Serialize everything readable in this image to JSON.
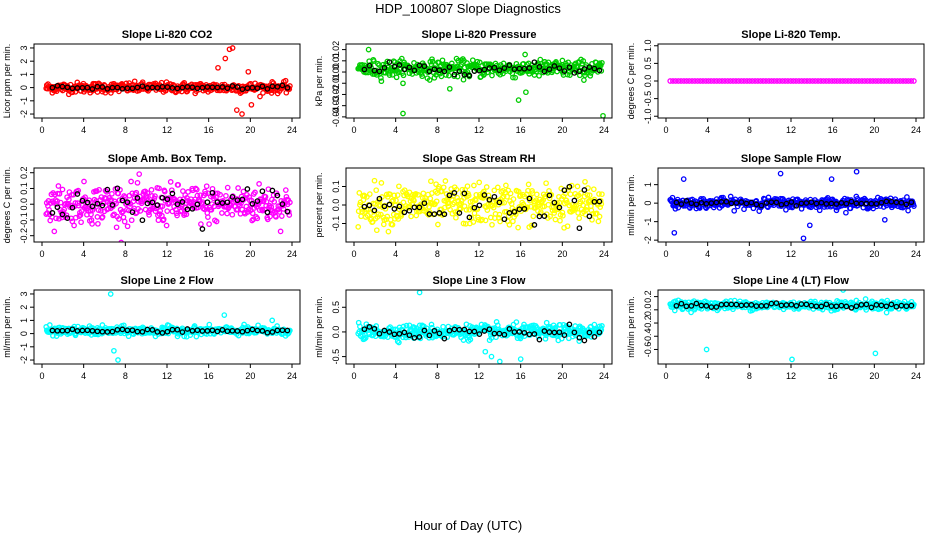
{
  "figure": {
    "title": "HDP_100807  Slope Diagnostics",
    "xlabel": "Hour of Day (UTC)"
  },
  "chart_data": [
    {
      "type": "scatter",
      "title": "Slope Li-820 CO2",
      "ylabel": "Licor ppm per min.",
      "color": "#ff0000",
      "xlim": [
        0,
        24
      ],
      "ylim": [
        -2.3,
        3.3
      ],
      "yticks": [
        -2,
        -1,
        0,
        1,
        2,
        3
      ],
      "ytick_labels": [
        "-2",
        "-1",
        "0",
        "1",
        "2",
        "3"
      ],
      "xticks": [
        0,
        4,
        8,
        12,
        16,
        20,
        24
      ],
      "xtick_labels": [
        "0",
        "4",
        "8",
        "12",
        "16",
        "20",
        "24"
      ],
      "center": 0,
      "spread": 0.35,
      "points": 400,
      "outliers": [
        [
          17.6,
          2.2
        ],
        [
          18.0,
          2.9
        ],
        [
          18.3,
          3.0
        ],
        [
          18.7,
          -1.7
        ],
        [
          19.2,
          -2.0
        ],
        [
          16.9,
          1.5
        ],
        [
          20.1,
          -1.3
        ],
        [
          19.8,
          1.2
        ]
      ],
      "black_spread": 0.1
    },
    {
      "type": "scatter",
      "title": "Slope Li-820 Pressure",
      "ylabel": "kPa per min.",
      "color": "#00cc00",
      "xlim": [
        0,
        24
      ],
      "ylim": [
        -0.041,
        0.025
      ],
      "yticks": [
        -0.04,
        -0.03,
        -0.02,
        -0.01,
        0,
        0.01,
        0.02
      ],
      "ytick_labels": [
        "-0.04",
        "-0.03",
        "-0.02",
        "-0.01",
        "0.00",
        "0.01",
        "0.02"
      ],
      "xticks": [
        0,
        4,
        8,
        12,
        16,
        20,
        24
      ],
      "xtick_labels": [
        "0",
        "4",
        "8",
        "12",
        "16",
        "20",
        "24"
      ],
      "center": 0.003,
      "spread": 0.007,
      "points": 420,
      "outliers": [
        [
          1.4,
          0.02
        ],
        [
          4.7,
          -0.037
        ],
        [
          23.9,
          -0.039
        ],
        [
          15.8,
          -0.025
        ],
        [
          16.5,
          -0.018
        ],
        [
          9.2,
          -0.015
        ]
      ],
      "black_spread": 0.004
    },
    {
      "type": "scatter",
      "title": "Slope Li-820 Temp.",
      "ylabel": "degrees C per min.",
      "color": "#ff00ff",
      "xlim": [
        0,
        24
      ],
      "ylim": [
        -1.05,
        1.05
      ],
      "yticks": [
        -1,
        -0.5,
        0,
        0.5,
        1
      ],
      "ytick_labels": [
        "-1.0",
        "-0.5",
        "0.0",
        "0.5",
        "1.0"
      ],
      "xticks": [
        0,
        4,
        8,
        12,
        16,
        20,
        24
      ],
      "xtick_labels": [
        "0",
        "4",
        "8",
        "12",
        "16",
        "20",
        "24"
      ],
      "center": 0,
      "spread": 0,
      "points": 90,
      "outliers": [],
      "black_spread": 0
    },
    {
      "type": "scatter",
      "title": "Slope Amb. Box Temp.",
      "ylabel": "degrees C per min.",
      "color": "#ff00ff",
      "xlim": [
        0,
        24
      ],
      "ylim": [
        -0.24,
        0.23
      ],
      "yticks": [
        -0.2,
        -0.1,
        0,
        0.1,
        0.2
      ],
      "ytick_labels": [
        "-0.2",
        "-0.1",
        "0.0",
        "0.1",
        "0.2"
      ],
      "xticks": [
        0,
        4,
        8,
        12,
        16,
        20,
        24
      ],
      "xtick_labels": [
        "0",
        "4",
        "8",
        "12",
        "16",
        "20",
        "24"
      ],
      "center": 0,
      "spread": 0.11,
      "points": 420,
      "outliers": [],
      "black_spread": 0.09
    },
    {
      "type": "scatter",
      "title": "Slope Gas Stream RH",
      "ylabel": "percent per min.",
      "color": "#ffff00",
      "xlim": [
        0,
        24
      ],
      "ylim": [
        -0.2,
        0.2
      ],
      "yticks": [
        -0.1,
        0,
        0.1
      ],
      "ytick_labels": [
        "-0.1",
        "0.0",
        "0.1"
      ],
      "xticks": [
        0,
        4,
        8,
        12,
        16,
        20,
        24
      ],
      "xtick_labels": [
        "0",
        "4",
        "8",
        "12",
        "16",
        "20",
        "24"
      ],
      "center": 0,
      "spread": 0.1,
      "points": 420,
      "outliers": [],
      "black_spread": 0.08
    },
    {
      "type": "scatter",
      "title": "Slope Sample Flow",
      "ylabel": "ml/min per min.",
      "color": "#0000ff",
      "xlim": [
        0,
        24
      ],
      "ylim": [
        -2.1,
        1.9
      ],
      "yticks": [
        -2,
        -1,
        0,
        1
      ],
      "ytick_labels": [
        "-2",
        "-1",
        "0",
        "1"
      ],
      "xticks": [
        0,
        4,
        8,
        12,
        16,
        20,
        24
      ],
      "xtick_labels": [
        "0",
        "4",
        "8",
        "12",
        "16",
        "20",
        "24"
      ],
      "center": 0,
      "spread": 0.25,
      "points": 420,
      "outliers": [
        [
          0.8,
          -1.6
        ],
        [
          1.7,
          1.3
        ],
        [
          11.0,
          1.6
        ],
        [
          15.9,
          1.3
        ],
        [
          13.2,
          -1.9
        ],
        [
          18.3,
          1.7
        ],
        [
          13.8,
          -1.2
        ],
        [
          21.0,
          -0.9
        ]
      ],
      "black_spread": 0.1
    },
    {
      "type": "scatter",
      "title": "Slope Line 2 Flow",
      "ylabel": "ml/min per min.",
      "color": "#00ffff",
      "xlim": [
        0,
        24
      ],
      "ylim": [
        -2.3,
        3.3
      ],
      "yticks": [
        -2,
        -1,
        0,
        1,
        2,
        3
      ],
      "ytick_labels": [
        "-2",
        "-1",
        "0",
        "1",
        "2",
        "3"
      ],
      "xticks": [
        0,
        4,
        8,
        12,
        16,
        20,
        24
      ],
      "xtick_labels": [
        "0",
        "4",
        "8",
        "12",
        "16",
        "20",
        "24"
      ],
      "center": 0.2,
      "spread": 0.3,
      "points": 400,
      "outliers": [
        [
          6.6,
          3.0
        ],
        [
          6.9,
          -1.3
        ],
        [
          7.3,
          -2.0
        ],
        [
          17.5,
          1.4
        ],
        [
          22.1,
          1.0
        ]
      ],
      "black_spread": 0.1
    },
    {
      "type": "scatter",
      "title": "Slope Line 3 Flow",
      "ylabel": "ml/min per min.",
      "color": "#00ffff",
      "xlim": [
        0,
        24
      ],
      "ylim": [
        -0.65,
        0.85
      ],
      "yticks": [
        -0.5,
        0,
        0.5
      ],
      "ytick_labels": [
        "-0.5",
        "0.0",
        "0.5"
      ],
      "xticks": [
        0,
        4,
        8,
        12,
        16,
        20,
        24
      ],
      "xtick_labels": [
        "0",
        "4",
        "8",
        "12",
        "16",
        "20",
        "24"
      ],
      "center": 0,
      "spread": 0.13,
      "points": 420,
      "outliers": [
        [
          6.3,
          0.8
        ],
        [
          12.6,
          -0.4
        ],
        [
          13.2,
          -0.5
        ],
        [
          14.0,
          -0.6
        ],
        [
          16.0,
          -0.55
        ]
      ],
      "black_spread": 0.12
    },
    {
      "type": "scatter",
      "title": "Slope Line 4 (LT) Flow",
      "ylabel": "ml/min per min.",
      "color": "#00ffff",
      "xlim": [
        0,
        24
      ],
      "ylim": [
        -0.82,
        0.3
      ],
      "yticks": [
        -0.6,
        -0.4,
        -0.2,
        0,
        0.2
      ],
      "ytick_labels": [
        "-0.6",
        "-0.4",
        "-0.2",
        "0.0",
        "0.2"
      ],
      "xticks": [
        0,
        4,
        8,
        12,
        16,
        20,
        24
      ],
      "xtick_labels": [
        "0",
        "4",
        "8",
        "12",
        "16",
        "20",
        "24"
      ],
      "center": 0.07,
      "spread": 0.06,
      "points": 420,
      "outliers": [
        [
          3.9,
          -0.6
        ],
        [
          12.1,
          -0.75
        ],
        [
          20.1,
          -0.66
        ],
        [
          17.0,
          0.3
        ]
      ],
      "black_spread": 0.03
    }
  ]
}
